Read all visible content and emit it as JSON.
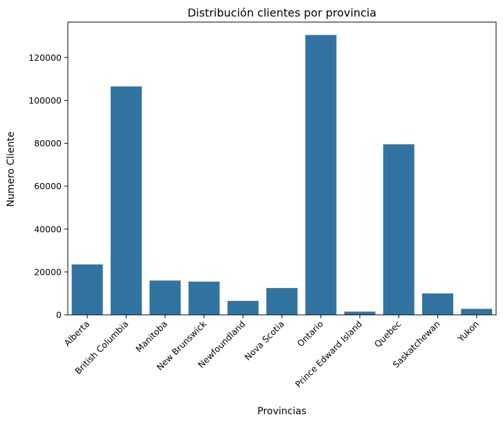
{
  "chart_data": {
    "type": "bar",
    "title": "Distribución clientes por provincia",
    "xlabel": "Provincias",
    "ylabel": "Numero Cliente",
    "categories": [
      "Alberta",
      "British Columbia",
      "Manitoba",
      "New Brunswick",
      "Newfoundland",
      "Nova Scotia",
      "Ontario",
      "Prince Edward Island",
      "Quebec",
      "Saskatchewan",
      "Yukon"
    ],
    "values": [
      23500,
      106500,
      16000,
      15500,
      6500,
      12500,
      130500,
      1500,
      79500,
      10000,
      2800
    ],
    "ylim": [
      0,
      136500
    ],
    "yticks": [
      "0",
      "20000",
      "40000",
      "60000",
      "80000",
      "100000",
      "120000"
    ],
    "ytick_values": [
      0,
      20000,
      40000,
      60000,
      80000,
      100000,
      120000
    ],
    "grid": false,
    "bar_color": "#3274a1",
    "xtick_rotation": "45 degrees"
  }
}
